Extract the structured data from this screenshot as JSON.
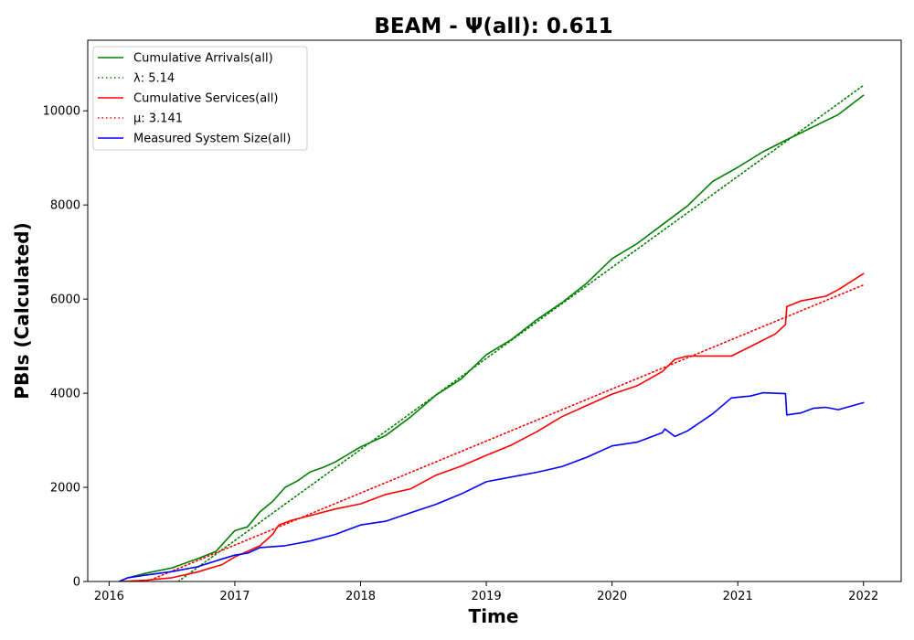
{
  "chart_data": {
    "type": "line",
    "title": "BEAM -  Ψ(all): 0.611",
    "xlabel": "Time",
    "ylabel": "PBIs (Calculated)",
    "xlim": [
      2015.83,
      2022.3
    ],
    "ylim": [
      0,
      11500
    ],
    "x_ticks": [
      2016,
      2017,
      2018,
      2019,
      2020,
      2021,
      2022
    ],
    "x_tick_labels": [
      "2016",
      "2017",
      "2018",
      "2019",
      "2020",
      "2021",
      "2022"
    ],
    "y_ticks": [
      0,
      2000,
      4000,
      6000,
      8000,
      10000
    ],
    "y_tick_labels": [
      "0",
      "2000",
      "4000",
      "6000",
      "8000",
      "10000"
    ],
    "grid": false,
    "legend_position": "upper-left",
    "series": [
      {
        "name": "Cumulative Arrivals(all)",
        "color": "#008000",
        "style": "solid",
        "points": [
          [
            2016.08,
            0
          ],
          [
            2016.15,
            80
          ],
          [
            2016.3,
            180
          ],
          [
            2016.5,
            290
          ],
          [
            2016.7,
            480
          ],
          [
            2016.85,
            640
          ],
          [
            2017.0,
            1080
          ],
          [
            2017.1,
            1160
          ],
          [
            2017.2,
            1480
          ],
          [
            2017.3,
            1700
          ],
          [
            2017.4,
            2000
          ],
          [
            2017.5,
            2140
          ],
          [
            2017.6,
            2330
          ],
          [
            2017.7,
            2420
          ],
          [
            2017.8,
            2540
          ],
          [
            2017.9,
            2700
          ],
          [
            2018.0,
            2860
          ],
          [
            2018.2,
            3100
          ],
          [
            2018.4,
            3500
          ],
          [
            2018.6,
            3960
          ],
          [
            2018.8,
            4300
          ],
          [
            2019.0,
            4820
          ],
          [
            2019.2,
            5140
          ],
          [
            2019.4,
            5560
          ],
          [
            2019.6,
            5920
          ],
          [
            2019.8,
            6340
          ],
          [
            2020.0,
            6860
          ],
          [
            2020.2,
            7180
          ],
          [
            2020.4,
            7580
          ],
          [
            2020.6,
            7980
          ],
          [
            2020.8,
            8500
          ],
          [
            2021.0,
            8800
          ],
          [
            2021.2,
            9130
          ],
          [
            2021.4,
            9400
          ],
          [
            2021.6,
            9660
          ],
          [
            2021.8,
            9920
          ],
          [
            2022.0,
            10330
          ]
        ]
      },
      {
        "name": "λ: 5.14",
        "color": "#008000",
        "style": "dotted",
        "points": [
          [
            2016.55,
            0
          ],
          [
            2022.0,
            10540
          ]
        ]
      },
      {
        "name": "Cumulative Services(all)",
        "color": "#ff0000",
        "style": "solid",
        "points": [
          [
            2016.1,
            0
          ],
          [
            2016.3,
            30
          ],
          [
            2016.5,
            80
          ],
          [
            2016.7,
            200
          ],
          [
            2016.9,
            360
          ],
          [
            2017.0,
            520
          ],
          [
            2017.2,
            760
          ],
          [
            2017.3,
            1000
          ],
          [
            2017.35,
            1200
          ],
          [
            2017.45,
            1300
          ],
          [
            2017.6,
            1400
          ],
          [
            2017.8,
            1540
          ],
          [
            2018.0,
            1650
          ],
          [
            2018.2,
            1850
          ],
          [
            2018.4,
            1970
          ],
          [
            2018.6,
            2260
          ],
          [
            2018.8,
            2450
          ],
          [
            2019.0,
            2680
          ],
          [
            2019.2,
            2900
          ],
          [
            2019.4,
            3180
          ],
          [
            2019.6,
            3500
          ],
          [
            2019.8,
            3740
          ],
          [
            2020.0,
            3980
          ],
          [
            2020.2,
            4160
          ],
          [
            2020.4,
            4460
          ],
          [
            2020.5,
            4720
          ],
          [
            2020.6,
            4790
          ],
          [
            2020.8,
            4790
          ],
          [
            2020.95,
            4790
          ],
          [
            2021.1,
            4990
          ],
          [
            2021.3,
            5260
          ],
          [
            2021.38,
            5460
          ],
          [
            2021.39,
            5840
          ],
          [
            2021.5,
            5960
          ],
          [
            2021.7,
            6060
          ],
          [
            2021.8,
            6200
          ],
          [
            2022.0,
            6540
          ]
        ]
      },
      {
        "name": "μ: 3.141",
        "color": "#ff0000",
        "style": "dotted",
        "points": [
          [
            2016.3,
            0
          ],
          [
            2022.0,
            6300
          ]
        ]
      },
      {
        "name": "Measured System Size(all)",
        "color": "#0000ff",
        "style": "solid",
        "points": [
          [
            2016.08,
            0
          ],
          [
            2016.15,
            80
          ],
          [
            2016.3,
            140
          ],
          [
            2016.5,
            210
          ],
          [
            2016.7,
            310
          ],
          [
            2016.9,
            480
          ],
          [
            2017.0,
            560
          ],
          [
            2017.1,
            600
          ],
          [
            2017.2,
            720
          ],
          [
            2017.4,
            760
          ],
          [
            2017.6,
            860
          ],
          [
            2017.8,
            1000
          ],
          [
            2018.0,
            1200
          ],
          [
            2018.2,
            1280
          ],
          [
            2018.4,
            1460
          ],
          [
            2018.6,
            1640
          ],
          [
            2018.8,
            1860
          ],
          [
            2019.0,
            2120
          ],
          [
            2019.2,
            2220
          ],
          [
            2019.4,
            2320
          ],
          [
            2019.6,
            2440
          ],
          [
            2019.8,
            2640
          ],
          [
            2020.0,
            2880
          ],
          [
            2020.2,
            2960
          ],
          [
            2020.4,
            3160
          ],
          [
            2020.42,
            3240
          ],
          [
            2020.5,
            3080
          ],
          [
            2020.6,
            3200
          ],
          [
            2020.8,
            3560
          ],
          [
            2020.95,
            3900
          ],
          [
            2021.1,
            3940
          ],
          [
            2021.2,
            4010
          ],
          [
            2021.38,
            3990
          ],
          [
            2021.39,
            3540
          ],
          [
            2021.5,
            3580
          ],
          [
            2021.6,
            3680
          ],
          [
            2021.7,
            3700
          ],
          [
            2021.8,
            3650
          ],
          [
            2022.0,
            3800
          ]
        ]
      }
    ]
  }
}
